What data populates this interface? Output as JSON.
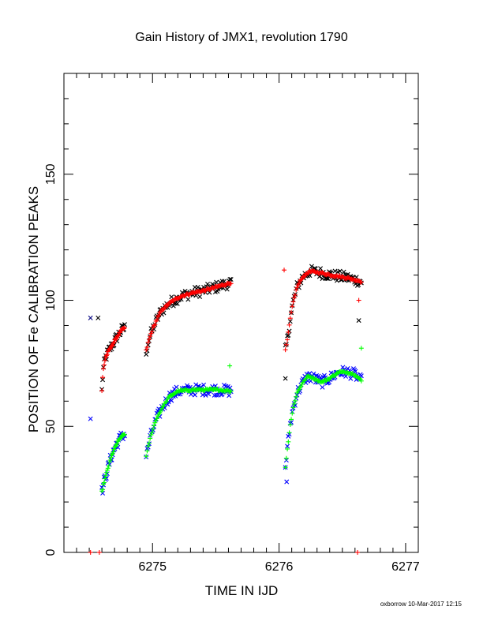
{
  "chart_data": {
    "type": "scatter",
    "title": "Gain History of JMX1, revolution 1790",
    "xlabel": "TIME IN IJD",
    "ylabel": "POSITION OF Fe CALIBRATION PEAKS",
    "xlim": [
      6274.3,
      6277.1
    ],
    "ylim": [
      0,
      190
    ],
    "xticks": [
      6275,
      6276,
      6277
    ],
    "yticks": [
      0,
      50,
      100,
      150
    ],
    "grid": false,
    "footer": "oxborrow 10-Mar-2017 12:15",
    "segments": [
      {
        "x0": 6274.6,
        "x1": 6274.78,
        "upper": [
          [
            0,
            64
          ],
          [
            0.05,
            72
          ],
          [
            0.15,
            77
          ],
          [
            0.3,
            80
          ],
          [
            0.5,
            83
          ],
          [
            0.7,
            86
          ],
          [
            0.85,
            88
          ],
          [
            1,
            89
          ]
        ],
        "lower": [
          [
            0,
            24
          ],
          [
            0.1,
            28
          ],
          [
            0.25,
            33
          ],
          [
            0.45,
            39
          ],
          [
            0.65,
            43
          ],
          [
            0.85,
            46
          ],
          [
            1,
            47
          ]
        ]
      },
      {
        "x0": 6274.95,
        "x1": 6275.62,
        "upper": [
          [
            0,
            80
          ],
          [
            0.03,
            84
          ],
          [
            0.07,
            88
          ],
          [
            0.12,
            92
          ],
          [
            0.18,
            96
          ],
          [
            0.28,
            99
          ],
          [
            0.4,
            101.5
          ],
          [
            0.55,
            103
          ],
          [
            0.7,
            104
          ],
          [
            0.85,
            105.5
          ],
          [
            1,
            107
          ]
        ],
        "lower": [
          [
            0,
            38
          ],
          [
            0.03,
            43
          ],
          [
            0.07,
            48
          ],
          [
            0.12,
            53
          ],
          [
            0.2,
            58
          ],
          [
            0.28,
            62
          ],
          [
            0.38,
            64
          ],
          [
            0.55,
            64.5
          ],
          [
            0.7,
            64.5
          ],
          [
            0.85,
            64.5
          ],
          [
            1,
            64
          ]
        ]
      },
      {
        "x0": 6276.05,
        "x1": 6276.65,
        "upper": [
          [
            0,
            80
          ],
          [
            0.03,
            85
          ],
          [
            0.06,
            92
          ],
          [
            0.1,
            99
          ],
          [
            0.15,
            105
          ],
          [
            0.22,
            109
          ],
          [
            0.32,
            111.5
          ],
          [
            0.45,
            111
          ],
          [
            0.6,
            110
          ],
          [
            0.8,
            109
          ],
          [
            1,
            107.5
          ]
        ],
        "lower": [
          [
            0,
            34
          ],
          [
            0.03,
            42
          ],
          [
            0.06,
            50
          ],
          [
            0.1,
            57
          ],
          [
            0.15,
            63
          ],
          [
            0.22,
            67
          ],
          [
            0.3,
            70
          ],
          [
            0.38,
            69
          ],
          [
            0.48,
            67.5
          ],
          [
            0.58,
            69
          ],
          [
            0.7,
            71.5
          ],
          [
            0.82,
            71.5
          ],
          [
            0.92,
            70.5
          ],
          [
            1,
            68
          ]
        ]
      }
    ],
    "outliers": [
      {
        "x": 6274.51,
        "y": 93,
        "color": "#000080"
      },
      {
        "x": 6274.57,
        "y": 93,
        "color": "#000000"
      },
      {
        "x": 6274.51,
        "y": 53,
        "color": "#0000ff"
      },
      {
        "x": 6274.51,
        "y": 0,
        "color": "#ff0000"
      },
      {
        "x": 6274.58,
        "y": 0,
        "color": "#ff0000"
      },
      {
        "x": 6276.04,
        "y": 112,
        "color": "#ff0000"
      },
      {
        "x": 6276.05,
        "y": 69,
        "color": "#000000"
      },
      {
        "x": 6276.06,
        "y": 28,
        "color": "#0000ff"
      },
      {
        "x": 6276.63,
        "y": 100,
        "color": "#ff0000"
      },
      {
        "x": 6276.63,
        "y": 92,
        "color": "#000000"
      },
      {
        "x": 6276.65,
        "y": 81,
        "color": "#00ff00"
      },
      {
        "x": 6276.62,
        "y": 0,
        "color": "#ff0000"
      },
      {
        "x": 6275.61,
        "y": 74,
        "color": "#00ff00"
      }
    ],
    "series": [
      {
        "marker": "x",
        "color": "#000000",
        "track": "upper",
        "scatter": 2.2
      },
      {
        "marker": "+",
        "color": "#ff0000",
        "track": "upper",
        "scatter": 0.4
      },
      {
        "marker": "x",
        "color": "#0000ff",
        "track": "lower",
        "scatter": 2.2
      },
      {
        "marker": "+",
        "color": "#00ff00",
        "track": "lower",
        "scatter": 0.4
      }
    ]
  }
}
